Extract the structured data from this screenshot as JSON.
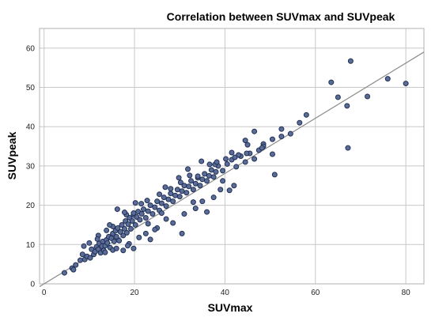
{
  "chart_data": {
    "type": "scatter",
    "title": "Correlation between SUVmax and SUVpeak",
    "xlabel": "SUVmax",
    "ylabel": "SUVpeak",
    "xlim": [
      -1,
      84
    ],
    "ylim": [
      0,
      65
    ],
    "xticks": [
      0,
      20,
      40,
      60,
      80
    ],
    "yticks": [
      0,
      10,
      20,
      30,
      40,
      50,
      60
    ],
    "grid": true,
    "point_color": "#5b6c96",
    "line_color": "#8a8a8a",
    "fit_line": {
      "x": [
        -1,
        84
      ],
      "y": [
        -0.7,
        59.0
      ]
    },
    "series": [
      {
        "points": [
          [
            4.5,
            2.8
          ],
          [
            6.2,
            4.0
          ],
          [
            7.0,
            4.8
          ],
          [
            6.5,
            3.6
          ],
          [
            8.0,
            6.0
          ],
          [
            8.5,
            7.5
          ],
          [
            9.0,
            6.2
          ],
          [
            9.5,
            7.0
          ],
          [
            10.2,
            6.6
          ],
          [
            10.5,
            8.8
          ],
          [
            11.0,
            7.5
          ],
          [
            11.3,
            8.2
          ],
          [
            11.6,
            9.4
          ],
          [
            12.0,
            8.8
          ],
          [
            12.2,
            10.3
          ],
          [
            12.5,
            7.9
          ],
          [
            12.8,
            9.6
          ],
          [
            13.0,
            10.8
          ],
          [
            13.2,
            8.5
          ],
          [
            13.5,
            9.7
          ],
          [
            13.8,
            11.2
          ],
          [
            14.0,
            10.4
          ],
          [
            14.3,
            12.0
          ],
          [
            14.6,
            9.2
          ],
          [
            14.9,
            11.6
          ],
          [
            15.2,
            12.8
          ],
          [
            15.5,
            10.8
          ],
          [
            15.8,
            13.5
          ],
          [
            16.0,
            12.0
          ],
          [
            16.3,
            14.2
          ],
          [
            16.6,
            11.0
          ],
          [
            16.9,
            13.2
          ],
          [
            17.2,
            15.0
          ],
          [
            17.5,
            12.3
          ],
          [
            17.8,
            14.0
          ],
          [
            18.0,
            16.0
          ],
          [
            18.3,
            13.0
          ],
          [
            18.6,
            15.2
          ],
          [
            18.9,
            16.8
          ],
          [
            19.2,
            14.0
          ],
          [
            19.5,
            16.0
          ],
          [
            19.8,
            17.5
          ],
          [
            20.2,
            15.0
          ],
          [
            20.5,
            17.0
          ],
          [
            20.8,
            18.4
          ],
          [
            21.2,
            16.3
          ],
          [
            21.6,
            17.8
          ],
          [
            22.0,
            19.0
          ],
          [
            22.5,
            16.8
          ],
          [
            23.0,
            18.5
          ],
          [
            23.5,
            20.0
          ],
          [
            24.0,
            17.8
          ],
          [
            24.5,
            19.5
          ],
          [
            25.0,
            21.0
          ],
          [
            25.5,
            18.7
          ],
          [
            26.0,
            20.5
          ],
          [
            26.5,
            22.0
          ],
          [
            27.0,
            19.8
          ],
          [
            27.5,
            21.5
          ],
          [
            28.0,
            23.0
          ],
          [
            28.5,
            21.0
          ],
          [
            29.0,
            22.5
          ],
          [
            29.5,
            24.0
          ],
          [
            30.0,
            22.2
          ],
          [
            30.5,
            23.6
          ],
          [
            31.0,
            25.0
          ],
          [
            31.5,
            23.2
          ],
          [
            32.0,
            24.8
          ],
          [
            32.5,
            26.2
          ],
          [
            33.0,
            24.0
          ],
          [
            33.5,
            25.5
          ],
          [
            34.0,
            27.0
          ],
          [
            34.5,
            25.0
          ],
          [
            35.0,
            26.6
          ],
          [
            35.5,
            28.0
          ],
          [
            36.0,
            26.2
          ],
          [
            36.5,
            27.5
          ],
          [
            37.0,
            29.0
          ],
          [
            37.5,
            27.2
          ],
          [
            38.0,
            28.5
          ],
          [
            38.5,
            30.0
          ],
          [
            39.5,
            28.8
          ],
          [
            40.5,
            30.5
          ],
          [
            41.5,
            31.6
          ],
          [
            42.5,
            29.8
          ],
          [
            43.5,
            32.5
          ],
          [
            44.5,
            31.0
          ],
          [
            45.5,
            33.2
          ],
          [
            46.5,
            31.8
          ],
          [
            47.5,
            34.0
          ],
          [
            48.5,
            35.6
          ],
          [
            50.5,
            33.0
          ],
          [
            52.5,
            37.5
          ],
          [
            54.5,
            38.2
          ],
          [
            56.5,
            41.0
          ],
          [
            58.0,
            43.0
          ],
          [
            46.5,
            38.8
          ],
          [
            44.5,
            36.5
          ],
          [
            48.5,
            35.0
          ],
          [
            50.5,
            36.8
          ],
          [
            52.5,
            39.4
          ],
          [
            41.5,
            33.4
          ],
          [
            43.0,
            32.8
          ],
          [
            45.0,
            35.4
          ],
          [
            63.5,
            51.3
          ],
          [
            65.0,
            47.5
          ],
          [
            67.0,
            45.3
          ],
          [
            67.8,
            56.7
          ],
          [
            71.5,
            47.7
          ],
          [
            76.0,
            52.2
          ],
          [
            80.0,
            51.0
          ],
          [
            67.2,
            34.6
          ],
          [
            51.0,
            27.8
          ],
          [
            36.0,
            18.3
          ],
          [
            30.5,
            12.8
          ],
          [
            41.0,
            23.8
          ],
          [
            42.0,
            25.0
          ],
          [
            39.5,
            26.2
          ],
          [
            33.0,
            20.8
          ],
          [
            28.5,
            15.5
          ],
          [
            23.5,
            11.3
          ],
          [
            22.5,
            12.8
          ],
          [
            19.8,
            9.0
          ],
          [
            18.8,
            10.2
          ],
          [
            17.5,
            8.5
          ],
          [
            15.2,
            8.6
          ],
          [
            13.5,
            8.0
          ],
          [
            16.0,
            9.0
          ],
          [
            18.5,
            9.7
          ],
          [
            21.0,
            11.8
          ],
          [
            25.0,
            14.2
          ],
          [
            27.0,
            16.5
          ],
          [
            31.0,
            17.8
          ],
          [
            33.5,
            19.2
          ],
          [
            35.0,
            21.0
          ],
          [
            37.5,
            22.0
          ],
          [
            39.0,
            24.0
          ],
          [
            26.0,
            18.0
          ],
          [
            24.5,
            13.8
          ],
          [
            20.2,
            20.6
          ],
          [
            18.2,
            17.6
          ],
          [
            16.2,
            19.0
          ],
          [
            22.8,
            21.2
          ],
          [
            26.8,
            24.6
          ],
          [
            29.8,
            27.0
          ],
          [
            31.8,
            29.2
          ],
          [
            34.8,
            31.2
          ],
          [
            37.8,
            30.4
          ],
          [
            44.8,
            33.2
          ],
          [
            48.2,
            34.6
          ],
          [
            12.0,
            12.3
          ],
          [
            13.8,
            13.6
          ],
          [
            15.2,
            14.6
          ],
          [
            10.0,
            10.4
          ],
          [
            14.5,
            15.0
          ],
          [
            8.8,
            9.6
          ],
          [
            11.8,
            11.4
          ],
          [
            17.8,
            18.2
          ],
          [
            19.8,
            18.0
          ],
          [
            21.5,
            20.4
          ],
          [
            25.5,
            22.8
          ],
          [
            28.0,
            24.2
          ],
          [
            30.2,
            25.8
          ],
          [
            32.2,
            27.6
          ],
          [
            34.0,
            27.4
          ],
          [
            36.6,
            30.4
          ],
          [
            38.2,
            31.0
          ],
          [
            40.2,
            31.8
          ],
          [
            42.2,
            32.2
          ],
          [
            23.0,
            15.3
          ]
        ]
      }
    ]
  }
}
